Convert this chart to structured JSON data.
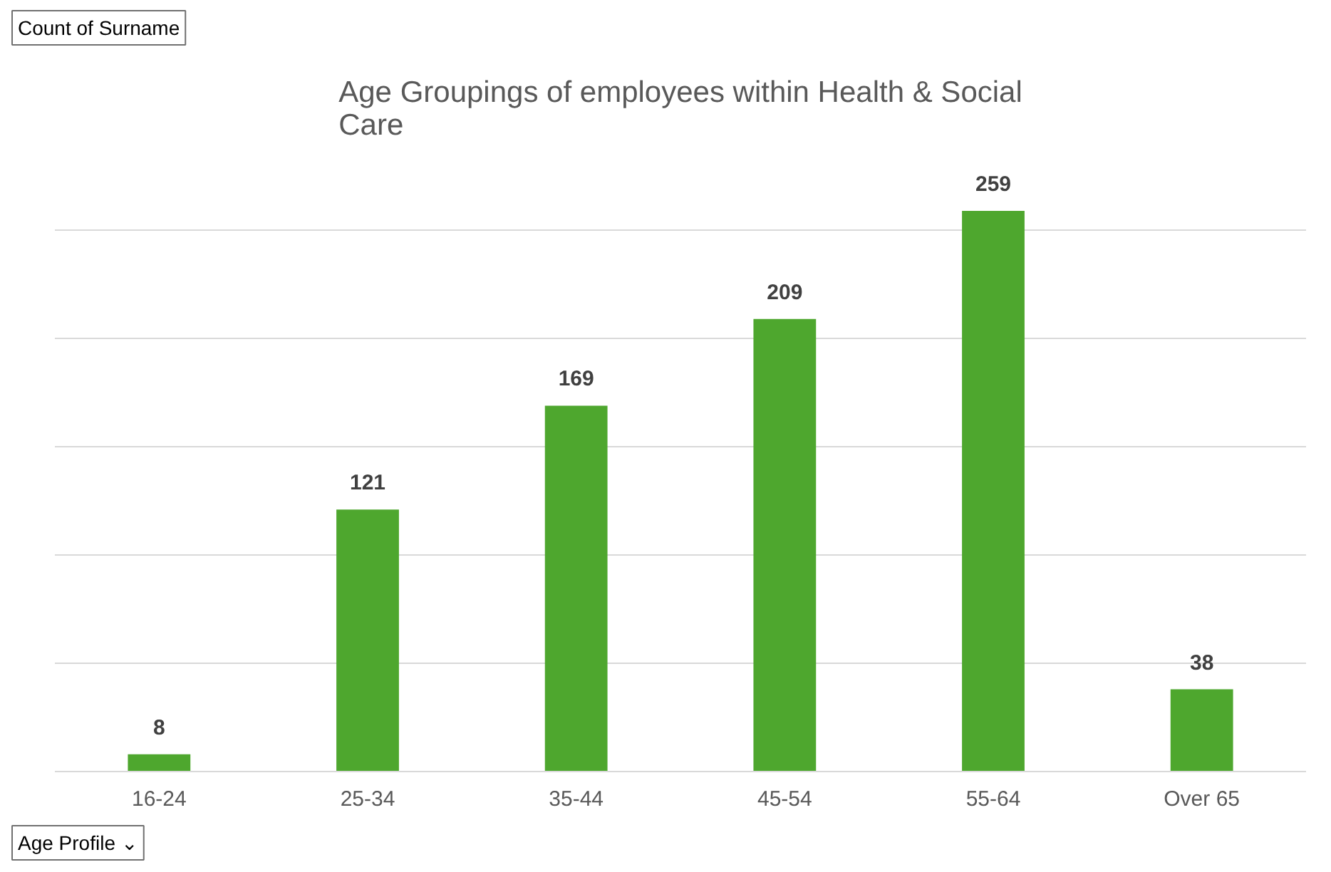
{
  "chart_data": {
    "type": "bar",
    "title": "Age Groupings of employees within Health & Social Care",
    "categories": [
      "16-24",
      "25-34",
      "35-44",
      "45-54",
      "55-64",
      "Over 65"
    ],
    "values": [
      8,
      121,
      169,
      209,
      259,
      38
    ],
    "color": "#4ea72e",
    "data_labels": true,
    "tick_labels": "x",
    "grid": "y",
    "annotations": [
      "Count of Surname",
      "Age Profile ⌄"
    ]
  }
}
